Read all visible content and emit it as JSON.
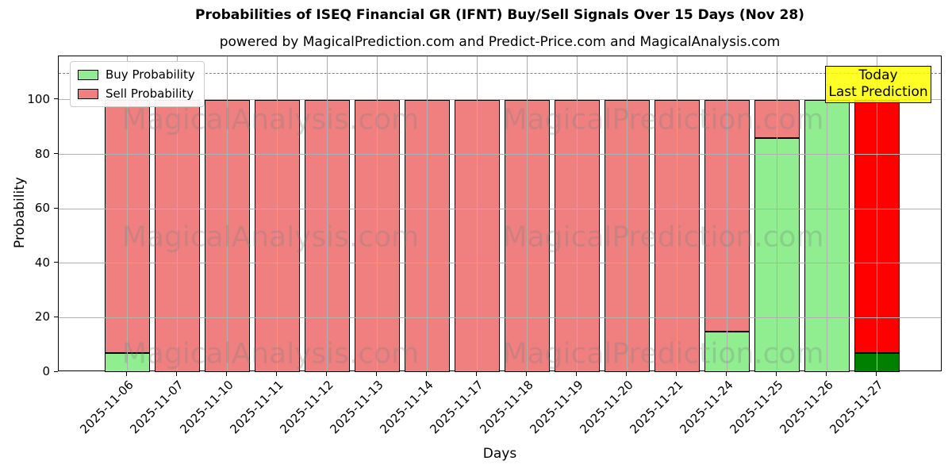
{
  "chart_data": {
    "type": "bar",
    "stacked": true,
    "title": "Probabilities of ISEQ Financial GR (IFNT) Buy/Sell Signals Over 15 Days (Nov 28)",
    "subtitle": "powered by MagicalPrediction.com and Predict-Price.com and MagicalAnalysis.com",
    "xlabel": "Days",
    "ylabel": "Probability",
    "ylim": [
      0,
      116
    ],
    "yticks": [
      0,
      20,
      40,
      60,
      80,
      100
    ],
    "grid": true,
    "dashed_line_y": 110,
    "legend_position": "upper-left",
    "categories": [
      "2025-11-06",
      "2025-11-07",
      "2025-11-10",
      "2025-11-11",
      "2025-11-12",
      "2025-11-13",
      "2025-11-14",
      "2025-11-17",
      "2025-11-18",
      "2025-11-19",
      "2025-11-20",
      "2025-11-21",
      "2025-11-24",
      "2025-11-25",
      "2025-11-26",
      "2025-11-27"
    ],
    "series": [
      {
        "name": "Buy Probability",
        "color": "#90ee90",
        "values": [
          7,
          0,
          0,
          0,
          0,
          0,
          0,
          0,
          0,
          0,
          0,
          0,
          15,
          86,
          100,
          7
        ]
      },
      {
        "name": "Sell Probability",
        "color": "#f08080",
        "values": [
          93,
          100,
          100,
          100,
          100,
          100,
          100,
          100,
          100,
          100,
          100,
          100,
          85,
          14,
          0,
          93
        ]
      }
    ],
    "today": {
      "index": 15,
      "buy_color": "#008000",
      "sell_color": "#ff0000"
    },
    "annotation": {
      "line1": "Today",
      "line2": "Last Prediction",
      "bg": "rgba(255,255,0,0.85)",
      "border": "#000000"
    },
    "colors": {
      "bar_edge": "#000000",
      "grid": "#b0b0b0",
      "dashed": "#808080"
    },
    "watermark": {
      "left": "MagicalAnalysis.com",
      "right": "MagicalPrediction.com"
    }
  }
}
